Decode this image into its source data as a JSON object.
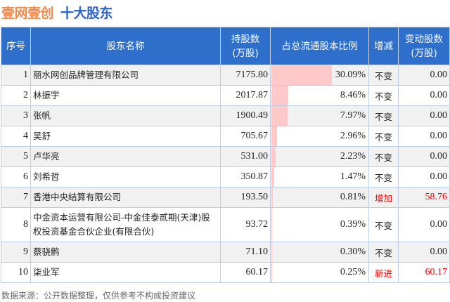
{
  "title": {
    "company": "壹网壹创",
    "subtitle": "十大股东"
  },
  "headers": [
    "序号",
    "股东名称",
    "持股数\n(万股)",
    "占总流通股本比例",
    "增减",
    "变动股数\n(万股)"
  ],
  "rows": [
    {
      "no": "1",
      "name": "丽水网创品牌管理有限公司",
      "shares": "7175.80",
      "pct": "30.09%",
      "pct_value": 30.09,
      "change": "不变",
      "delta": "0.00"
    },
    {
      "no": "2",
      "name": "林振宇",
      "shares": "2017.87",
      "pct": "8.46%",
      "pct_value": 8.46,
      "change": "不变",
      "delta": "0.00"
    },
    {
      "no": "3",
      "name": "张帆",
      "shares": "1900.49",
      "pct": "7.97%",
      "pct_value": 7.97,
      "change": "不变",
      "delta": "0.00"
    },
    {
      "no": "4",
      "name": "吴舒",
      "shares": "705.67",
      "pct": "2.96%",
      "pct_value": 2.96,
      "change": "不变",
      "delta": "0.00"
    },
    {
      "no": "5",
      "name": "卢华亮",
      "shares": "531.00",
      "pct": "2.23%",
      "pct_value": 2.23,
      "change": "不变",
      "delta": "0.00"
    },
    {
      "no": "6",
      "name": "刘希哲",
      "shares": "350.87",
      "pct": "1.47%",
      "pct_value": 1.47,
      "change": "不变",
      "delta": "0.00"
    },
    {
      "no": "7",
      "name": "香港中央结算有限公司",
      "shares": "193.50",
      "pct": "0.81%",
      "pct_value": 0.81,
      "change": "增加",
      "delta": "58.76",
      "highlight": true
    },
    {
      "no": "8",
      "name": "中金资本运营有限公司-中金佳泰贰期(天津)股权投资基金合伙企业(有限合伙)",
      "shares": "93.72",
      "pct": "0.39%",
      "pct_value": 0.39,
      "change": "不变",
      "delta": "0.00"
    },
    {
      "no": "9",
      "name": "蔡骁鹘",
      "shares": "71.10",
      "pct": "0.30%",
      "pct_value": 0.3,
      "change": "不变",
      "delta": "0.00"
    },
    {
      "no": "10",
      "name": "柒业军",
      "shares": "60.17",
      "pct": "0.25%",
      "pct_value": 0.25,
      "change": "新进",
      "delta": "60.17",
      "highlight": true
    }
  ],
  "footer": "数据来源：公开数据整理，仅供参考不构成投资建议",
  "colors": {
    "header_bg": "#2e6fcc",
    "title_orange": "#f5894a",
    "title_blue": "#2a62c6",
    "bar": "#ffc9c9",
    "highlight": "#ee0000"
  }
}
